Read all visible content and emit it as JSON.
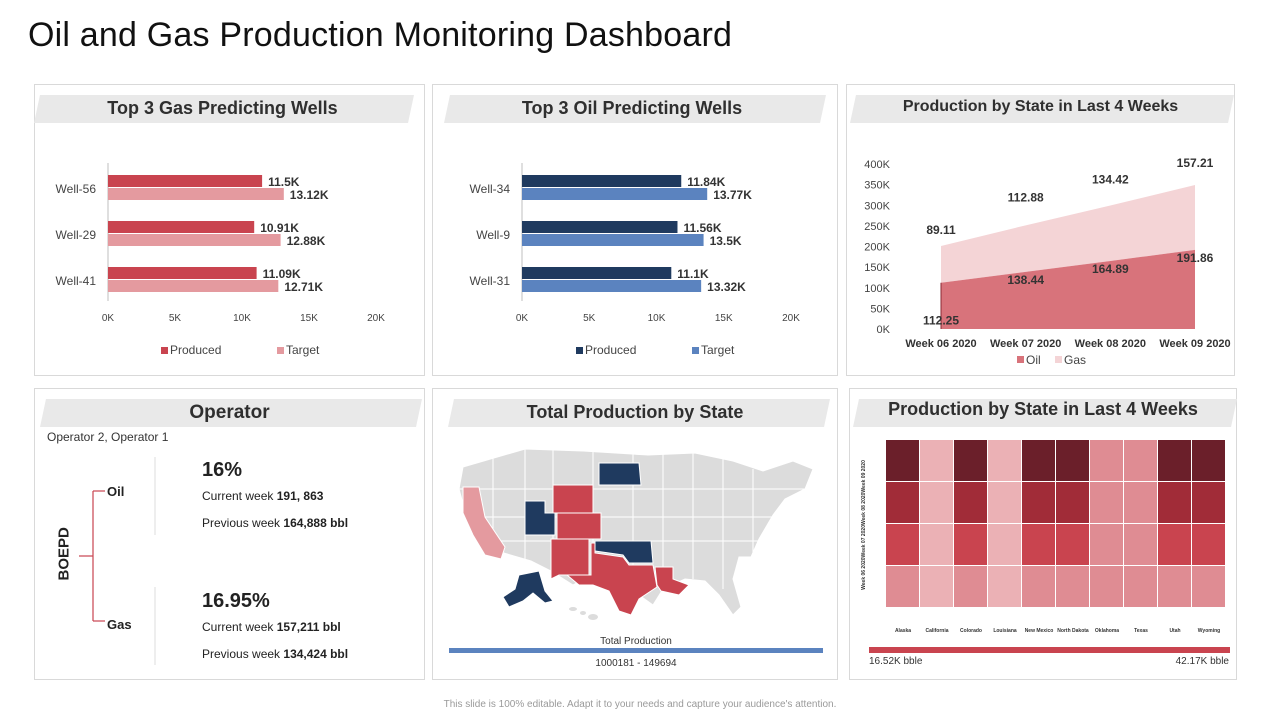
{
  "title": "Oil and Gas Production Monitoring Dashboard",
  "footer": "This slide is 100% editable. Adapt it to your needs and capture your audience's attention.",
  "colors": {
    "gas_produced": "#c9444f",
    "gas_target": "#e49a9f",
    "oil_produced": "#1f3a5f",
    "oil_target": "#5b83bf",
    "area_oil": "#d8737b",
    "area_gas": "#f4d4d6"
  },
  "operator": {
    "title": "Operator",
    "subtitle": "Operator 2, Operator 1",
    "axis_label": "BOEPD",
    "oil": {
      "label": "Oil",
      "percent": "16%",
      "current_label": "Current  week",
      "current_value": "191, 863",
      "previous_label": "Previous  week",
      "previous_value": "164,888 bbl"
    },
    "gas": {
      "label": "Gas",
      "percent": "16.95%",
      "current_label": "Current  week",
      "current_value": "157,211 bbl",
      "previous_label": "Previous  week",
      "previous_value": "134,424 bbl"
    }
  },
  "map": {
    "title": "Total Production by State",
    "legend_title": "Total Production",
    "legend_range": "1000181 - 149694"
  },
  "chart_data": [
    {
      "id": "gas-wells",
      "type": "bar",
      "orientation": "horizontal",
      "title": "Top 3 Gas Predicting Wells",
      "categories": [
        "Well-56",
        "Well-29",
        "Well-41"
      ],
      "series": [
        {
          "name": "Produced",
          "values": [
            11500,
            10910,
            11090
          ],
          "labels": [
            "11.5K",
            "10.91K",
            "11.09K"
          ]
        },
        {
          "name": "Target",
          "values": [
            13120,
            12880,
            12710
          ],
          "labels": [
            "13.12K",
            "12.88K",
            "12.71K"
          ]
        }
      ],
      "xlim": [
        0,
        20000
      ],
      "ticks": [
        0,
        5000,
        10000,
        15000,
        20000
      ],
      "tick_labels": [
        "0K",
        "5K",
        "10K",
        "15K",
        "20K"
      ],
      "legend": "bottom"
    },
    {
      "id": "oil-wells",
      "type": "bar",
      "orientation": "horizontal",
      "title": "Top 3 Oil Predicting Wells",
      "categories": [
        "Well-34",
        "Well-9",
        "Well-31"
      ],
      "series": [
        {
          "name": "Produced",
          "values": [
            11840,
            11560,
            11100
          ],
          "labels": [
            "11.84K",
            "11.56K",
            "11.1K"
          ]
        },
        {
          "name": "Target",
          "values": [
            13770,
            13500,
            13320
          ],
          "labels": [
            "13.77K",
            "13.5K",
            "13.32K"
          ]
        }
      ],
      "xlim": [
        0,
        20000
      ],
      "ticks": [
        0,
        5000,
        10000,
        15000,
        20000
      ],
      "tick_labels": [
        "0K",
        "5K",
        "10K",
        "15K",
        "20K"
      ],
      "legend": "bottom"
    },
    {
      "id": "state-area",
      "type": "area",
      "title": "Production by State in Last 4 Weeks",
      "categories": [
        "Week 06 2020",
        "Week 07 2020",
        "Week 08 2020",
        "Week 09 2020"
      ],
      "series": [
        {
          "name": "Oil",
          "values": [
            112250,
            138440,
            164890,
            191860
          ],
          "labels": [
            "112.25",
            "138.44",
            "164.89",
            "191.86"
          ]
        },
        {
          "name": "Gas",
          "values": [
            89110,
            112880,
            134420,
            157210
          ],
          "labels": [
            "89.11",
            "112.88",
            "134.42",
            "157.21"
          ]
        }
      ],
      "ylim": [
        0,
        400000
      ],
      "ticks": [
        0,
        50000,
        100000,
        150000,
        200000,
        250000,
        300000,
        350000,
        400000
      ],
      "tick_labels": [
        "0K",
        "50K",
        "100K",
        "150K",
        "200K",
        "250K",
        "300K",
        "350K",
        "400K"
      ],
      "legend": "bottom"
    },
    {
      "id": "state-heatmap",
      "type": "heatmap",
      "title": "Production by State in Last 4 Weeks",
      "columns": [
        "Alaska",
        "California",
        "Colorado",
        "Louisiana",
        "New Mexico",
        "North Dakota",
        "Oklahoma",
        "Texas",
        "Utah",
        "Wyoming"
      ],
      "rows": [
        "Week 09 2020",
        "Week 08 2020",
        "Week 07 2020",
        "Week 06 2020"
      ],
      "values": [
        [
          5,
          1,
          5,
          1,
          5,
          5,
          2,
          2,
          5,
          5
        ],
        [
          4,
          1,
          4,
          1,
          4,
          4,
          2,
          2,
          4,
          4
        ],
        [
          3,
          1,
          3,
          1,
          3,
          3,
          2,
          2,
          3,
          3
        ],
        [
          2,
          1,
          2,
          1,
          2,
          2,
          2,
          2,
          2,
          2
        ]
      ],
      "scale_min_label": "16.52K bble",
      "scale_max_label": "42.17K bble"
    }
  ]
}
